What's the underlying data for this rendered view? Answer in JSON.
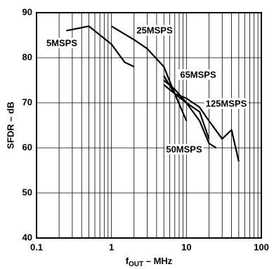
{
  "chart_data": {
    "type": "line",
    "y_label": "SFDR – dB",
    "x_label": {
      "main": "f",
      "sub": "OUT",
      "rest": " – MHz"
    },
    "x_log": true,
    "xlim": [
      0.1,
      100
    ],
    "xticks": [
      0.1,
      1,
      10,
      100
    ],
    "x_minor_ticks": [
      0.2,
      0.3,
      0.4,
      0.5,
      0.6,
      0.7,
      0.8,
      0.9,
      2,
      3,
      4,
      5,
      6,
      7,
      8,
      9,
      20,
      30,
      40,
      50,
      60,
      70,
      80,
      90
    ],
    "ylim": [
      40,
      90
    ],
    "yticks": [
      40,
      50,
      60,
      70,
      80,
      90
    ],
    "grid": true,
    "series": [
      {
        "name": "5MSPS",
        "color": "#000000",
        "x": [
          0.25,
          0.5,
          1,
          1.5,
          2
        ],
        "values": [
          86,
          87,
          83,
          79,
          78
        ]
      },
      {
        "name": "25MSPS",
        "color": "#000000",
        "x": [
          1,
          2,
          3,
          5,
          7,
          10
        ],
        "values": [
          87,
          84,
          82,
          78,
          72,
          66
        ]
      },
      {
        "name": "65MSPS",
        "color": "#000000",
        "x": [
          5,
          7,
          10,
          15,
          20
        ],
        "values": [
          75,
          73,
          70,
          68,
          62
        ]
      },
      {
        "name": "125MSPS",
        "color": "#000000",
        "x": [
          5,
          7,
          10,
          15,
          20,
          30,
          40,
          50
        ],
        "values": [
          74,
          72,
          71,
          69,
          66,
          62,
          64,
          57
        ]
      },
      {
        "name": "50MSPS",
        "color": "#000000",
        "x": [
          5,
          7,
          10,
          15,
          20,
          25
        ],
        "values": [
          76,
          72,
          70,
          66,
          61,
          60
        ]
      }
    ]
  }
}
